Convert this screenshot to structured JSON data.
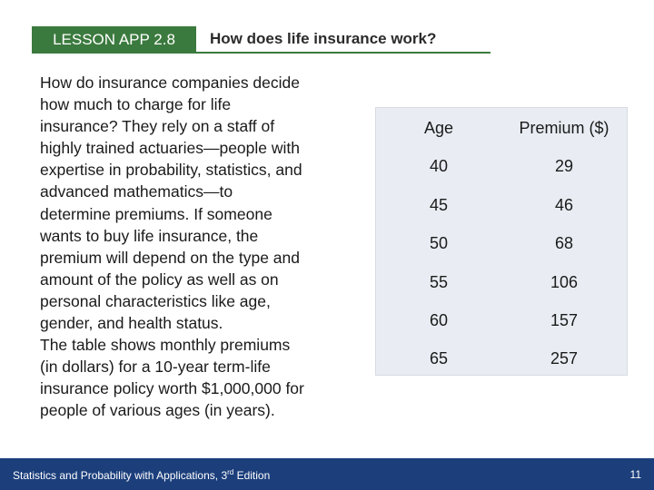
{
  "header": {
    "lesson": "LESSON APP 2.8",
    "title": "How does life insurance work?"
  },
  "body": {
    "lines": [
      "How do insurance companies decide",
      "how much to charge for life",
      "insurance? They rely on a staff of",
      "highly trained actuaries—people with",
      "expertise in probability, statistics, and",
      "advanced mathematics—to",
      "determine premiums. If someone",
      "wants to buy life insurance, the",
      "premium will depend on the type and",
      "amount of the policy as well as on",
      "personal characteristics like age,",
      "gender, and health status.",
      "The table shows monthly premiums",
      "(in dollars) for a 10-year term-life",
      "insurance policy worth $1,000,000 for",
      "people of various ages (in years)."
    ]
  },
  "table": {
    "columns": [
      "Age",
      "Premium ($)"
    ],
    "rows": [
      [
        40,
        29
      ],
      [
        45,
        46
      ],
      [
        50,
        68
      ],
      [
        55,
        106
      ],
      [
        60,
        157
      ],
      [
        65,
        257
      ]
    ]
  },
  "footer": {
    "text": "Statistics and Probability with Applications, 3",
    "superscript": "rd",
    "text_end": " Edition",
    "page": "11"
  }
}
